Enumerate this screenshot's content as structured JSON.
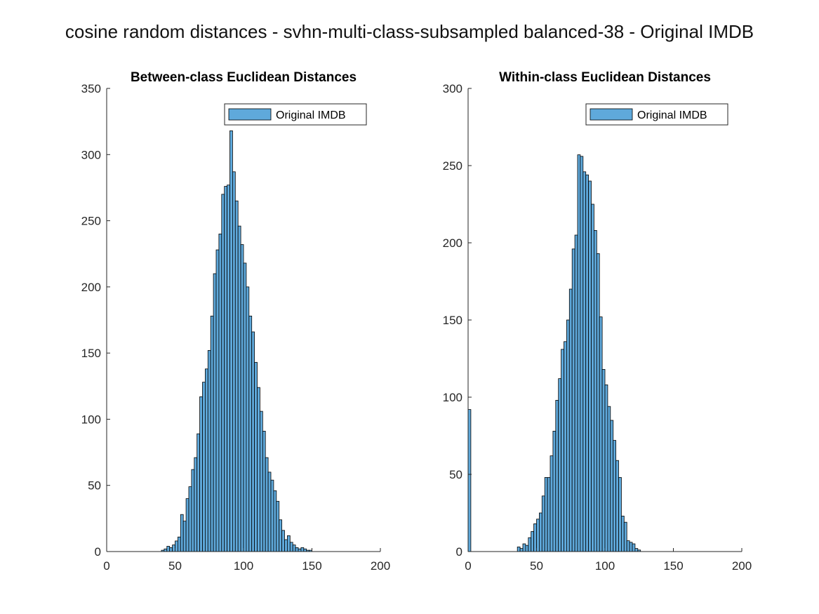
{
  "figure_title": "cosine random distances - svhn-multi-class-subsampled balanced-38 - Original IMDB",
  "chart_data": [
    {
      "type": "bar",
      "title": "Between-class Euclidean Distances",
      "legend": "Original IMDB",
      "legend_position": "top-right",
      "color": "#5fa9db",
      "xlim": [
        0,
        200
      ],
      "ylim": [
        0,
        350
      ],
      "xticks": [
        0,
        50,
        100,
        150,
        200
      ],
      "yticks": [
        0,
        50,
        100,
        150,
        200,
        250,
        300,
        350
      ],
      "bin_width": 2,
      "bins_start": 0,
      "values": [
        0,
        0,
        0,
        0,
        0,
        0,
        0,
        0,
        0,
        0,
        0,
        0,
        0,
        0,
        0,
        0,
        0,
        0,
        0,
        0,
        1,
        2,
        4,
        3,
        5,
        8,
        11,
        28,
        23,
        40,
        49,
        62,
        71,
        89,
        117,
        128,
        138,
        152,
        178,
        210,
        228,
        240,
        270,
        276,
        277,
        318,
        287,
        265,
        246,
        232,
        218,
        200,
        178,
        166,
        143,
        124,
        106,
        91,
        71,
        60,
        54,
        46,
        38,
        24,
        16,
        9,
        12,
        7,
        5,
        3,
        2,
        3,
        2,
        1,
        1,
        0,
        0,
        0,
        0,
        0,
        0,
        0,
        0,
        0,
        0,
        0,
        0,
        0,
        0,
        0
      ],
      "grid": false
    },
    {
      "type": "bar",
      "title": "Within-class Euclidean Distances",
      "legend": "Original IMDB",
      "legend_position": "top-right",
      "color": "#5fa9db",
      "xlim": [
        0,
        200
      ],
      "ylim": [
        0,
        300
      ],
      "xticks": [
        0,
        50,
        100,
        150,
        200
      ],
      "yticks": [
        0,
        50,
        100,
        150,
        200,
        250,
        300
      ],
      "bin_width": 2,
      "bins_start": 0,
      "values": [
        92,
        0,
        0,
        0,
        0,
        0,
        0,
        0,
        0,
        0,
        0,
        0,
        0,
        0,
        0,
        0,
        0,
        0,
        3,
        2,
        5,
        4,
        9,
        13,
        18,
        21,
        25,
        36,
        48,
        48,
        62,
        78,
        98,
        112,
        131,
        136,
        150,
        170,
        196,
        205,
        257,
        256,
        246,
        244,
        240,
        225,
        208,
        193,
        152,
        118,
        108,
        94,
        85,
        72,
        59,
        48,
        23,
        19,
        7,
        6,
        5,
        2,
        1,
        0,
        0,
        0,
        0,
        0,
        0,
        0,
        0,
        0,
        0,
        0,
        0,
        0,
        0,
        0,
        0,
        0,
        0,
        0,
        0,
        0,
        0,
        0,
        0,
        0,
        0,
        0
      ],
      "grid": false
    }
  ]
}
